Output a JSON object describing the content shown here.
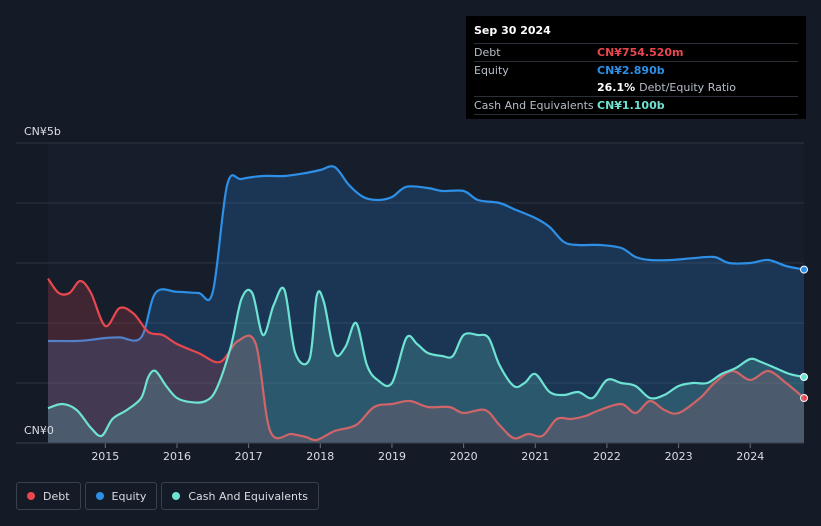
{
  "tooltip": {
    "date": "Sep 30 2024",
    "debt_label": "Debt",
    "debt_value": "CN¥754.520m",
    "equity_label": "Equity",
    "equity_value": "CN¥2.890b",
    "ratio_value": "26.1%",
    "ratio_label": "Debt/Equity Ratio",
    "cash_label": "Cash And Equivalents",
    "cash_value": "CN¥1.100b"
  },
  "colors": {
    "debt": "#e8474f",
    "equity": "#2d8fe6",
    "cash": "#6ee3d3"
  },
  "legend": [
    {
      "label": "Debt",
      "color": "#e8474f"
    },
    {
      "label": "Equity",
      "color": "#2d8fe6"
    },
    {
      "label": "Cash And Equivalents",
      "color": "#6ee3d3"
    }
  ],
  "chart_data": {
    "type": "area",
    "y_top_label": "CN¥5b",
    "y_bottom_label": "CN¥0",
    "ylim": [
      0,
      5
    ],
    "xlim": [
      2014.2,
      2024.75
    ],
    "x_ticks": [
      2015,
      2016,
      2017,
      2018,
      2019,
      2020,
      2021,
      2022,
      2023,
      2024
    ],
    "series": [
      {
        "name": "Debt",
        "points": [
          [
            2014.2,
            2.74
          ],
          [
            2014.35,
            2.5
          ],
          [
            2014.5,
            2.5
          ],
          [
            2014.65,
            2.7
          ],
          [
            2014.8,
            2.5
          ],
          [
            2015.0,
            1.95
          ],
          [
            2015.2,
            2.25
          ],
          [
            2015.4,
            2.15
          ],
          [
            2015.6,
            1.85
          ],
          [
            2015.8,
            1.8
          ],
          [
            2016.0,
            1.65
          ],
          [
            2016.3,
            1.5
          ],
          [
            2016.6,
            1.35
          ],
          [
            2016.85,
            1.7
          ],
          [
            2017.1,
            1.65
          ],
          [
            2017.3,
            0.2
          ],
          [
            2017.6,
            0.15
          ],
          [
            2017.8,
            0.1
          ],
          [
            2017.95,
            0.05
          ],
          [
            2018.2,
            0.2
          ],
          [
            2018.5,
            0.3
          ],
          [
            2018.75,
            0.6
          ],
          [
            2019.0,
            0.65
          ],
          [
            2019.25,
            0.7
          ],
          [
            2019.5,
            0.6
          ],
          [
            2019.8,
            0.6
          ],
          [
            2020.0,
            0.5
          ],
          [
            2020.3,
            0.55
          ],
          [
            2020.5,
            0.3
          ],
          [
            2020.7,
            0.08
          ],
          [
            2020.9,
            0.15
          ],
          [
            2021.1,
            0.12
          ],
          [
            2021.3,
            0.4
          ],
          [
            2021.5,
            0.4
          ],
          [
            2021.7,
            0.45
          ],
          [
            2021.9,
            0.55
          ],
          [
            2022.2,
            0.65
          ],
          [
            2022.4,
            0.5
          ],
          [
            2022.6,
            0.7
          ],
          [
            2022.8,
            0.55
          ],
          [
            2023.0,
            0.5
          ],
          [
            2023.3,
            0.75
          ],
          [
            2023.5,
            1.0
          ],
          [
            2023.75,
            1.2
          ],
          [
            2024.0,
            1.05
          ],
          [
            2024.25,
            1.2
          ],
          [
            2024.5,
            1.0
          ],
          [
            2024.75,
            0.75
          ]
        ]
      },
      {
        "name": "Equity",
        "points": [
          [
            2014.2,
            1.7
          ],
          [
            2014.6,
            1.7
          ],
          [
            2014.8,
            1.72
          ],
          [
            2015.0,
            1.75
          ],
          [
            2015.2,
            1.76
          ],
          [
            2015.5,
            1.76
          ],
          [
            2015.7,
            2.5
          ],
          [
            2016.0,
            2.52
          ],
          [
            2016.3,
            2.5
          ],
          [
            2016.5,
            2.52
          ],
          [
            2016.7,
            4.3
          ],
          [
            2016.9,
            4.4
          ],
          [
            2017.2,
            4.45
          ],
          [
            2017.5,
            4.45
          ],
          [
            2017.8,
            4.5
          ],
          [
            2018.0,
            4.55
          ],
          [
            2018.2,
            4.6
          ],
          [
            2018.4,
            4.3
          ],
          [
            2018.6,
            4.1
          ],
          [
            2018.8,
            4.05
          ],
          [
            2019.0,
            4.1
          ],
          [
            2019.2,
            4.27
          ],
          [
            2019.5,
            4.25
          ],
          [
            2019.7,
            4.2
          ],
          [
            2020.0,
            4.2
          ],
          [
            2020.2,
            4.05
          ],
          [
            2020.5,
            4.0
          ],
          [
            2020.7,
            3.9
          ],
          [
            2021.0,
            3.75
          ],
          [
            2021.2,
            3.6
          ],
          [
            2021.4,
            3.35
          ],
          [
            2021.6,
            3.3
          ],
          [
            2021.9,
            3.3
          ],
          [
            2022.2,
            3.25
          ],
          [
            2022.4,
            3.1
          ],
          [
            2022.6,
            3.05
          ],
          [
            2022.9,
            3.05
          ],
          [
            2023.2,
            3.08
          ],
          [
            2023.5,
            3.1
          ],
          [
            2023.7,
            3.0
          ],
          [
            2024.0,
            3.0
          ],
          [
            2024.25,
            3.05
          ],
          [
            2024.5,
            2.95
          ],
          [
            2024.75,
            2.89
          ]
        ]
      },
      {
        "name": "Cash And Equivalents",
        "points": [
          [
            2014.2,
            0.58
          ],
          [
            2014.4,
            0.65
          ],
          [
            2014.6,
            0.55
          ],
          [
            2014.8,
            0.25
          ],
          [
            2014.95,
            0.12
          ],
          [
            2015.1,
            0.4
          ],
          [
            2015.3,
            0.55
          ],
          [
            2015.5,
            0.75
          ],
          [
            2015.6,
            1.1
          ],
          [
            2015.7,
            1.2
          ],
          [
            2015.85,
            0.95
          ],
          [
            2016.0,
            0.75
          ],
          [
            2016.2,
            0.68
          ],
          [
            2016.4,
            0.7
          ],
          [
            2016.55,
            0.9
          ],
          [
            2016.75,
            1.6
          ],
          [
            2016.9,
            2.4
          ],
          [
            2017.05,
            2.5
          ],
          [
            2017.2,
            1.8
          ],
          [
            2017.35,
            2.3
          ],
          [
            2017.5,
            2.55
          ],
          [
            2017.65,
            1.5
          ],
          [
            2017.85,
            1.4
          ],
          [
            2017.95,
            2.45
          ],
          [
            2018.05,
            2.35
          ],
          [
            2018.2,
            1.5
          ],
          [
            2018.35,
            1.6
          ],
          [
            2018.5,
            2.0
          ],
          [
            2018.65,
            1.3
          ],
          [
            2018.8,
            1.05
          ],
          [
            2019.0,
            1.0
          ],
          [
            2019.2,
            1.75
          ],
          [
            2019.35,
            1.65
          ],
          [
            2019.5,
            1.5
          ],
          [
            2019.7,
            1.45
          ],
          [
            2019.85,
            1.45
          ],
          [
            2020.0,
            1.8
          ],
          [
            2020.2,
            1.8
          ],
          [
            2020.35,
            1.75
          ],
          [
            2020.5,
            1.3
          ],
          [
            2020.7,
            0.95
          ],
          [
            2020.85,
            1.0
          ],
          [
            2021.0,
            1.15
          ],
          [
            2021.2,
            0.85
          ],
          [
            2021.4,
            0.8
          ],
          [
            2021.6,
            0.85
          ],
          [
            2021.8,
            0.75
          ],
          [
            2022.0,
            1.05
          ],
          [
            2022.2,
            1.0
          ],
          [
            2022.4,
            0.95
          ],
          [
            2022.6,
            0.75
          ],
          [
            2022.8,
            0.8
          ],
          [
            2023.0,
            0.95
          ],
          [
            2023.2,
            1.0
          ],
          [
            2023.4,
            1.0
          ],
          [
            2023.6,
            1.15
          ],
          [
            2023.8,
            1.25
          ],
          [
            2024.0,
            1.4
          ],
          [
            2024.15,
            1.35
          ],
          [
            2024.35,
            1.25
          ],
          [
            2024.55,
            1.15
          ],
          [
            2024.75,
            1.1
          ]
        ]
      }
    ]
  }
}
